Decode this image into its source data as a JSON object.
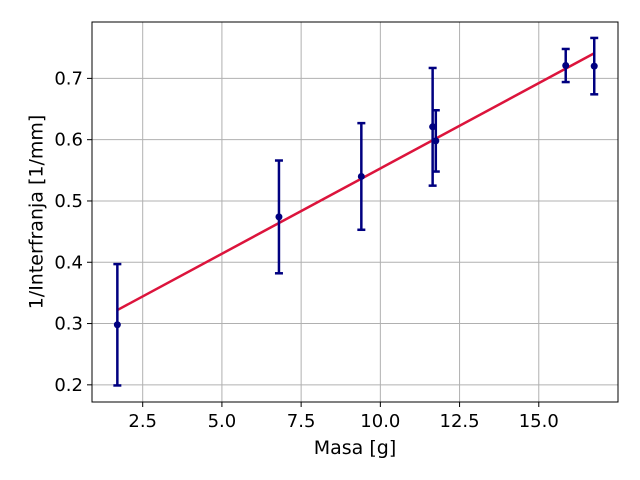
{
  "chart_data": {
    "type": "scatter",
    "xlabel": "Masa [g]",
    "ylabel": "1/Interfranja [1/mm]",
    "xlim": [
      0.9,
      17.5
    ],
    "ylim": [
      0.172,
      0.792
    ],
    "x_ticks": [
      2.5,
      5.0,
      7.5,
      10.0,
      12.5,
      15.0
    ],
    "x_tick_labels": [
      "2.5",
      "5.0",
      "7.5",
      "10.0",
      "12.5",
      "15.0"
    ],
    "y_ticks": [
      0.2,
      0.3,
      0.4,
      0.5,
      0.6,
      0.7
    ],
    "y_tick_labels": [
      "0.2",
      "0.3",
      "0.4",
      "0.5",
      "0.6",
      "0.7"
    ],
    "grid": true,
    "series": [
      {
        "kind": "errorbar",
        "color": "#000080",
        "points": [
          {
            "x": 1.7,
            "y": 0.298,
            "yerr": 0.099
          },
          {
            "x": 6.8,
            "y": 0.474,
            "yerr": 0.092
          },
          {
            "x": 9.4,
            "y": 0.54,
            "yerr": 0.087
          },
          {
            "x": 11.65,
            "y": 0.621,
            "yerr": 0.096
          },
          {
            "x": 11.75,
            "y": 0.598,
            "yerr": 0.05
          },
          {
            "x": 15.85,
            "y": 0.721,
            "yerr": 0.027
          },
          {
            "x": 16.75,
            "y": 0.72,
            "yerr": 0.046
          }
        ]
      },
      {
        "kind": "fit-line",
        "color": "#dc143c",
        "x": [
          1.7,
          16.75
        ],
        "y": [
          0.322,
          0.741
        ]
      }
    ]
  }
}
